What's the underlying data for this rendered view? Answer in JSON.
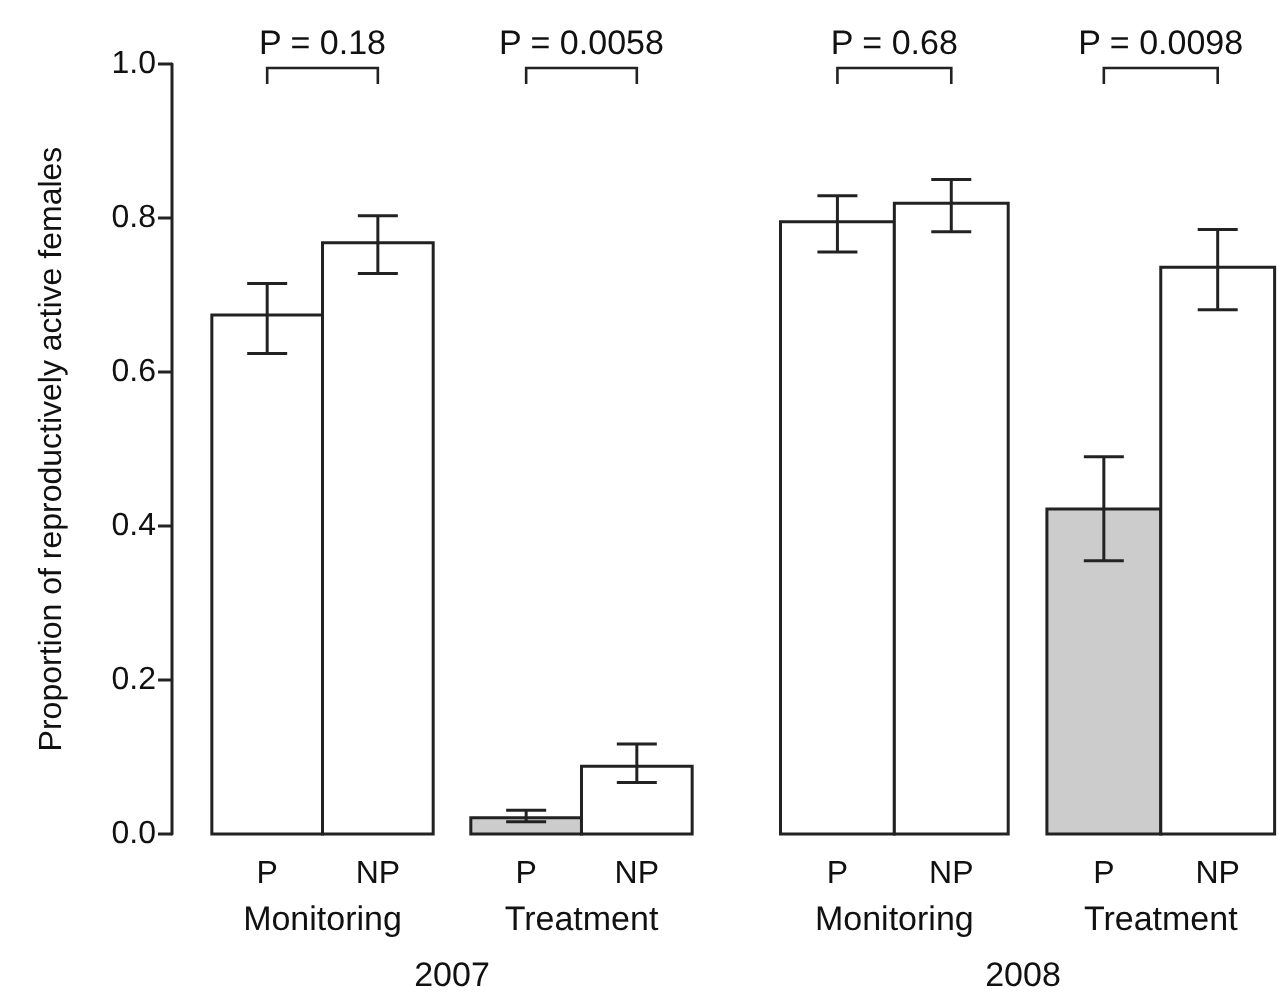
{
  "chart_data": [
    {
      "type": "bar",
      "categories": [
        "P",
        "NP",
        "P",
        "NP"
      ],
      "xlabel": "2007",
      "ylabel": "Proportion of reproductively active females",
      "values": [
        0.674,
        0.768,
        0.021,
        0.088
      ],
      "errors": [
        [
          0.624,
          0.715
        ],
        [
          0.728,
          0.803
        ],
        [
          0.016,
          0.031
        ],
        [
          0.067,
          0.117
        ]
      ],
      "colors": [
        "#ffffff",
        "#ffffff",
        "#cccccc",
        "#ffffff"
      ],
      "ylim": [
        0,
        1
      ],
      "yticks": [
        {
          "value": 0,
          "label": "0.0"
        },
        {
          "value": 0.2,
          "label": "0.2"
        },
        {
          "value": 0.4,
          "label": "0.4"
        },
        {
          "value": 0.6,
          "label": "0.6"
        },
        {
          "value": 0.8,
          "label": "0.8"
        },
        {
          "value": 1,
          "label": "1.0"
        }
      ],
      "annotations": [
        "P = 0.18",
        "P = 0.0058",
        "Monitoring",
        "Treatment"
      ]
    },
    {
      "type": "bar",
      "categories": [
        "P",
        "NP",
        "P",
        "NP"
      ],
      "xlabel": "2008",
      "values": [
        0.795,
        0.819,
        0.422,
        0.736
      ],
      "errors": [
        [
          0.756,
          0.829
        ],
        [
          0.782,
          0.85
        ],
        [
          0.355,
          0.49
        ],
        [
          0.681,
          0.785
        ]
      ],
      "colors": [
        "#ffffff",
        "#ffffff",
        "#cccccc",
        "#ffffff"
      ],
      "ylim": [
        0,
        1
      ],
      "tick_labels": "x",
      "annotations": [
        "P = 0.68",
        "P = 0.0098",
        "Monitoring",
        "Treatment"
      ]
    }
  ]
}
